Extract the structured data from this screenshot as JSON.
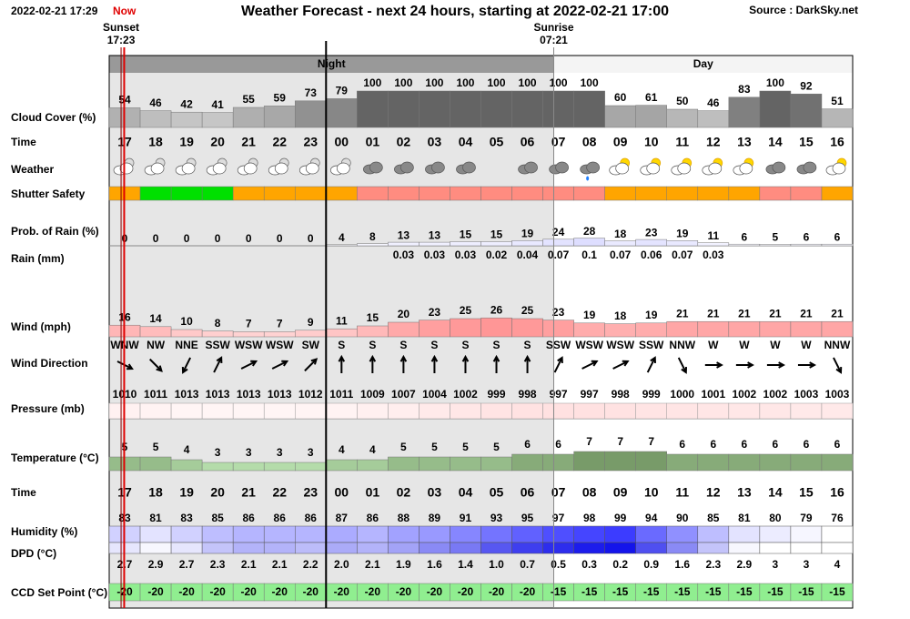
{
  "header": {
    "timestamp": "2022-02-21 17:29",
    "now": "Now",
    "title": "Weather Forecast - next 24 hours, starting at 2022-02-21 17:00",
    "source": "Source : DarkSky.net",
    "sunset_label": "Sunset",
    "sunset": "17:23",
    "sunrise_label": "Sunrise",
    "sunrise": "07:21",
    "night": "Night",
    "day": "Day"
  },
  "hours": [
    "17",
    "18",
    "19",
    "20",
    "21",
    "22",
    "23",
    "00",
    "01",
    "02",
    "03",
    "04",
    "05",
    "06",
    "07",
    "08",
    "09",
    "10",
    "11",
    "12",
    "13",
    "14",
    "15",
    "16"
  ],
  "rows": {
    "cloud": {
      "label": "Cloud Cover (%)",
      "values": [
        54,
        46,
        42,
        41,
        55,
        59,
        73,
        79,
        100,
        100,
        100,
        100,
        100,
        100,
        100,
        100,
        60,
        61,
        50,
        46,
        83,
        100,
        92,
        51
      ]
    },
    "time": {
      "label": "Time"
    },
    "weather": {
      "label": "Weather",
      "icons": [
        "partly-cloudy-night",
        "partly-cloudy-night",
        "partly-cloudy-night",
        "partly-cloudy-night",
        "partly-cloudy-night",
        "partly-cloudy-night",
        "partly-cloudy-night",
        "partly-cloudy-night",
        "cloudy",
        "cloudy",
        "cloudy",
        "cloudy",
        null,
        "cloudy",
        "cloudy",
        "rain",
        "partly-cloudy-day",
        "partly-cloudy-day",
        "partly-cloudy-day",
        "partly-cloudy-day",
        "partly-cloudy-day",
        "cloudy",
        "cloudy",
        "partly-cloudy-day"
      ]
    },
    "shutter": {
      "label": "Shutter Safety",
      "colors": [
        "#ffa500",
        "#00e000",
        "#00e000",
        "#00e000",
        "#ffa500",
        "#ffa500",
        "#ffa500",
        "#ffa500",
        "#ff8c80",
        "#ff8c80",
        "#ff8c80",
        "#ff8c80",
        "#ff8c80",
        "#ff8c80",
        "#ff8c80",
        "#ff8c80",
        "#ffa500",
        "#ffa500",
        "#ffa500",
        "#ffa500",
        "#ffa500",
        "#ff8c80",
        "#ff8c80",
        "#ffa500"
      ]
    },
    "prob_rain": {
      "label": "Prob. of Rain (%)",
      "values": [
        0,
        0,
        0,
        0,
        0,
        0,
        0,
        4,
        8,
        13,
        13,
        15,
        15,
        19,
        24,
        28,
        18,
        23,
        19,
        11,
        6,
        5,
        6,
        6
      ]
    },
    "rain": {
      "label": "Rain (mm)",
      "values": [
        null,
        null,
        null,
        null,
        null,
        null,
        null,
        null,
        null,
        0.03,
        0.03,
        0.03,
        0.02,
        0.04,
        0.07,
        0.1,
        0.07,
        0.06,
        0.07,
        0.03,
        null,
        null,
        null,
        null
      ]
    },
    "wind": {
      "label": "Wind (mph)",
      "values": [
        16,
        14,
        10,
        8,
        7,
        7,
        9,
        11,
        15,
        20,
        23,
        25,
        26,
        25,
        23,
        19,
        18,
        19,
        21,
        21,
        21,
        21,
        21,
        21
      ]
    },
    "wind_dir": {
      "label": "Wind Direction",
      "values": [
        "WNW",
        "NW",
        "NNE",
        "SSW",
        "WSW",
        "WSW",
        "SW",
        "S",
        "S",
        "S",
        "S",
        "S",
        "S",
        "S",
        "SSW",
        "WSW",
        "WSW",
        "SSW",
        "NNW",
        "W",
        "W",
        "W",
        "W",
        "NNW"
      ]
    },
    "pressure": {
      "label": "Pressure (mb)",
      "values": [
        1010,
        1011,
        1013,
        1013,
        1013,
        1013,
        1012,
        1011,
        1009,
        1007,
        1004,
        1002,
        999,
        998,
        997,
        997,
        998,
        999,
        1000,
        1001,
        1002,
        1002,
        1003,
        1003
      ]
    },
    "temperature": {
      "label": "Temperature (°C)",
      "values": [
        5,
        5,
        4,
        3,
        3,
        3,
        3,
        4,
        4,
        5,
        5,
        5,
        5,
        6,
        6,
        7,
        7,
        7,
        6,
        6,
        6,
        6,
        6,
        6
      ]
    },
    "time2": {
      "label": "Time"
    },
    "humidity": {
      "label": "Humidity (%)",
      "values": [
        83,
        81,
        83,
        85,
        86,
        86,
        86,
        87,
        86,
        88,
        89,
        91,
        93,
        95,
        97,
        98,
        99,
        94,
        90,
        85,
        81,
        80,
        79,
        76
      ]
    },
    "dpd": {
      "label": "DPD (°C)",
      "values": [
        2.7,
        2.9,
        2.7,
        2.3,
        2.1,
        2.1,
        2.2,
        2.0,
        2.1,
        1.9,
        1.6,
        1.4,
        1.0,
        0.7,
        0.5,
        0.3,
        0.2,
        0.9,
        1.6,
        2.3,
        2.9,
        3,
        3,
        4
      ],
      "value_labels": [
        "2.7",
        "2.9",
        "2.7",
        "2.3",
        "2.1",
        "2.1",
        "2.2",
        "2.0",
        "2.1",
        "1.9",
        "1.6",
        "1.4",
        "1.0",
        "0.7",
        "0.5",
        "0.3",
        "0.2",
        "0.9",
        "1.6",
        "2.3",
        "2.9",
        "3",
        "3",
        "4"
      ]
    },
    "ccd": {
      "label": "CCD Set Point (°C)",
      "values": [
        -20,
        -20,
        -20,
        -20,
        -20,
        -20,
        -20,
        -20,
        -20,
        -20,
        -20,
        -20,
        -20,
        -20,
        -15,
        -15,
        -15,
        -15,
        -15,
        -15,
        -15,
        -15,
        -15,
        -15
      ]
    }
  }
}
